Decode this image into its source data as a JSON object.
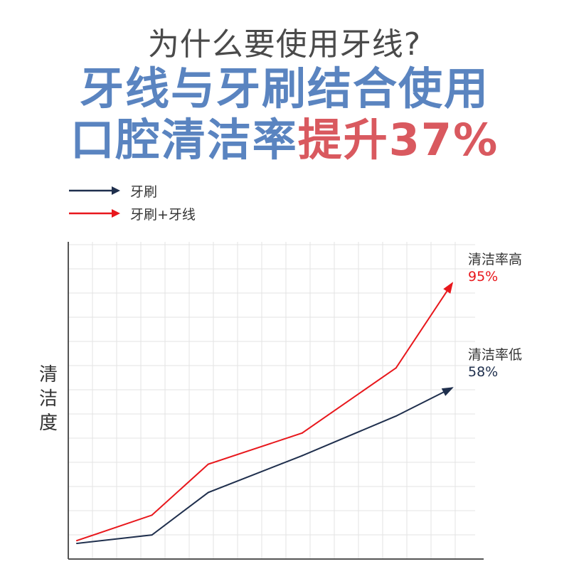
{
  "header": {
    "question": "为什么要使用牙线?",
    "headline_line1": "牙线与牙刷结合使用",
    "headline_line2_prefix": "口腔清洁率",
    "headline_line2_highlight": "提升37%"
  },
  "colors": {
    "headline_blue": "#5a84c0",
    "headline_red": "#d9595f",
    "series_brush": "#1f2f4d",
    "series_brush_floss": "#e8171c",
    "grid": "#e3e3e3",
    "axis": "#555555"
  },
  "chart_data": {
    "type": "line",
    "title": "",
    "xlabel": "",
    "ylabel": "清洁度",
    "grid": true,
    "legend_position": "top-left",
    "xlim": [
      0,
      10
    ],
    "ylim": [
      0,
      100
    ],
    "series": [
      {
        "name": "牙刷",
        "color": "#1f2f4d",
        "x": [
          0,
          2,
          3.5,
          6,
          8.5,
          10
        ],
        "values": [
          3,
          6,
          21,
          34,
          48,
          58
        ],
        "end_label": "清洁率低",
        "end_value": "58%"
      },
      {
        "name": "牙刷+牙线",
        "color": "#e8171c",
        "x": [
          0,
          2,
          3.5,
          6,
          8.5,
          10
        ],
        "values": [
          4,
          13,
          31,
          42,
          65,
          95
        ],
        "end_label": "清洁率高",
        "end_value": "95%"
      }
    ]
  }
}
